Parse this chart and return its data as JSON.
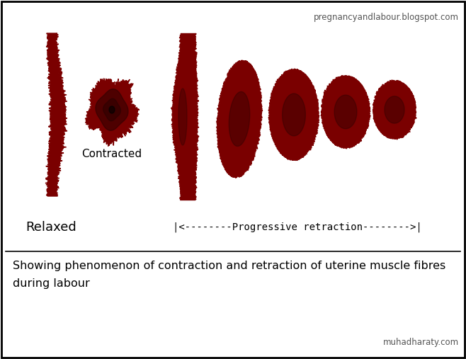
{
  "bg_color": "#ffffff",
  "muscle_color": "#7a0000",
  "dark_color": "#2a0000",
  "title_text": "pregnancyandlabour.blogspot.com",
  "footer_text": "muhadharaty.com",
  "label_relaxed": "Relaxed",
  "label_contracted": "Contracted",
  "label_retraction": "|<--------Progressive retraction-------->|",
  "caption_line1": "Showing phenomenon of contraction and retraction of uterine muscle fibres",
  "caption_line2": "during labour",
  "fig_width": 6.58,
  "fig_height": 5.07,
  "dpi": 100
}
